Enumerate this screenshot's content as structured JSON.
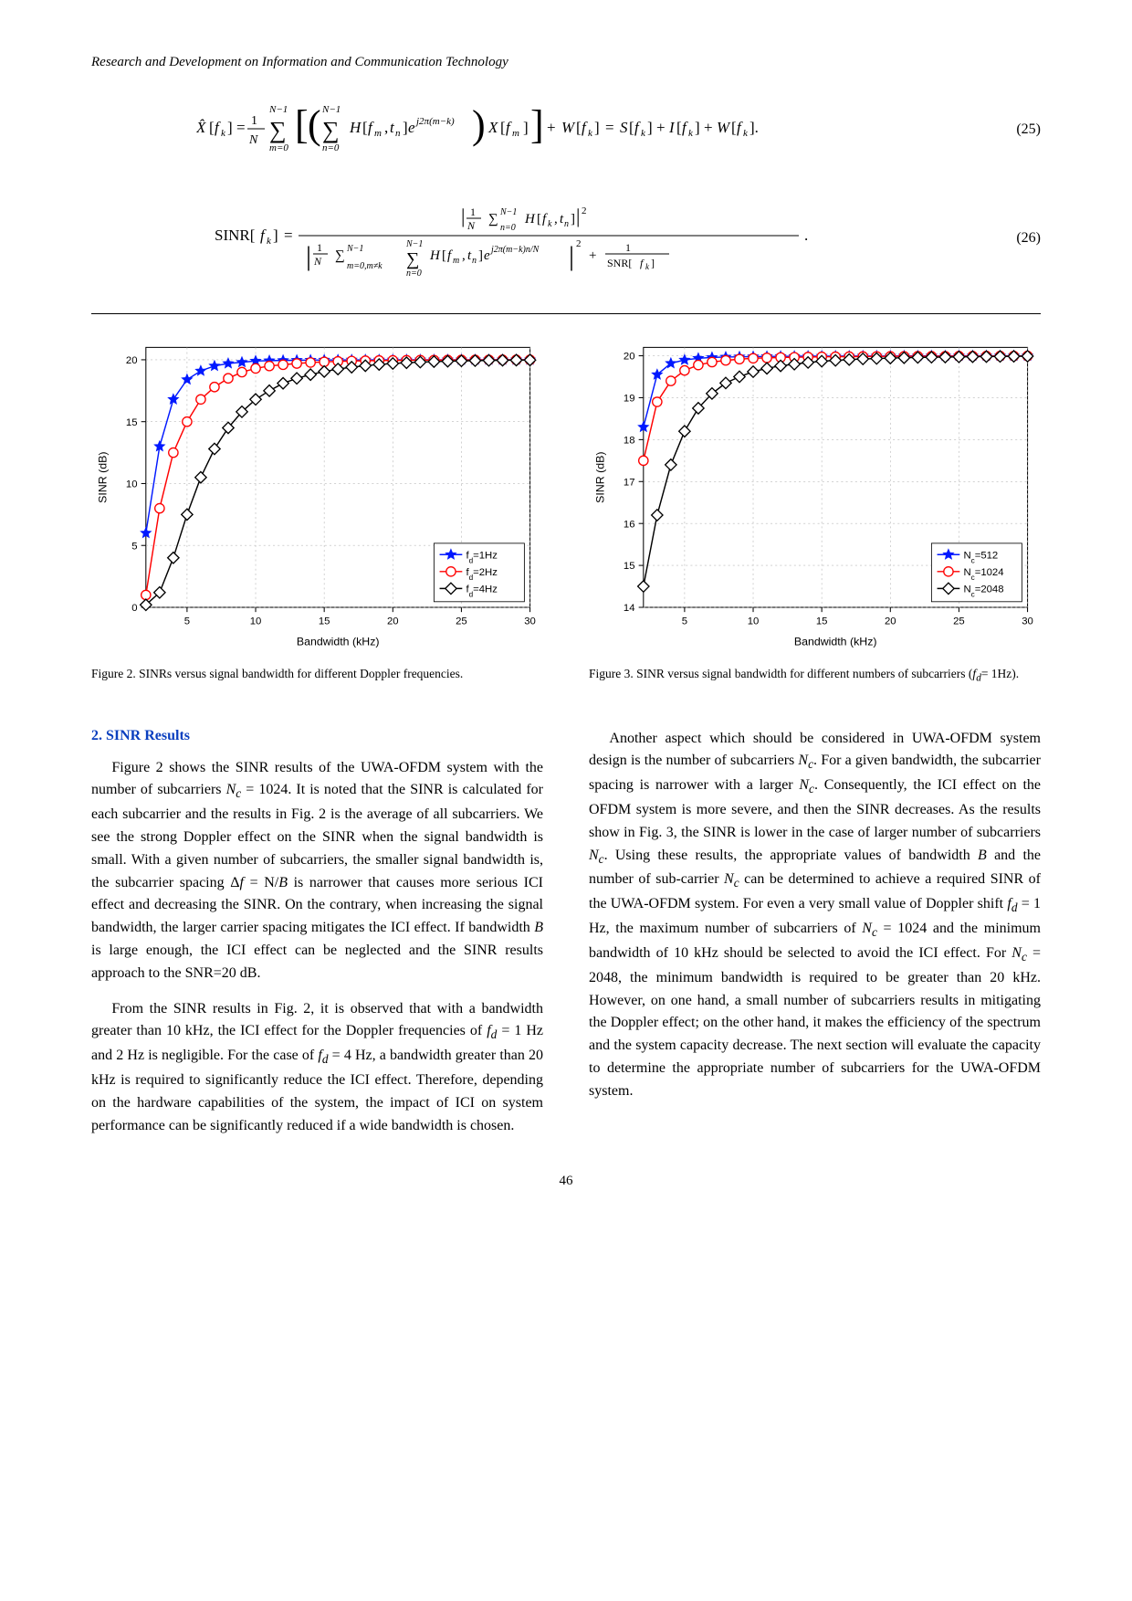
{
  "header": "Research and Development on Information and Communication Technology",
  "pageNumber": "46",
  "equations": {
    "eq25": {
      "number": "(25)",
      "latex": "X̂[fₖ] = (1/N) Σₘ₌₀^{N−1} [ ( Σₙ₌₀^{N−1} H[fₘ,tₙ] e^{j2π(m−k)} ) X[fₘ] ] + W[fₖ] = S[fₖ] + I[fₖ] + W[fₖ]."
    },
    "eq26": {
      "number": "(26)",
      "latex": "SINR[fₖ] = | (1/N) Σₙ₌₀^{N−1} H[fₖ,tₙ] |² / ( | (1/N) Σ_{m=0,m≠k}^{N−1} Σₙ₌₀^{N−1} H[fₘ,tₙ] e^{j2π(m−k)n/N} |² + 1/SNR[fₖ] )."
    }
  },
  "figure2": {
    "captionPrefix": "Figure 2.",
    "caption": "SINRs versus signal bandwidth for different Doppler frequencies.",
    "type": "line-marker",
    "xlabel": "Bandwidth (kHz)",
    "ylabel": "SINR (dB)",
    "xlim": [
      2,
      30
    ],
    "ylim": [
      0,
      21
    ],
    "xticks": [
      5,
      10,
      15,
      20,
      25,
      30
    ],
    "yticks": [
      0,
      5,
      10,
      15,
      20
    ],
    "label_fontsize": 12,
    "tick_fontsize": 11,
    "background_color": "#ffffff",
    "grid_color": "#b8b8b8",
    "axis_color": "#000000",
    "legend": {
      "position": "lower-right",
      "border_color": "#000000",
      "bg": "#ffffff",
      "fontsize": 11
    },
    "series": [
      {
        "name": "f_d=1Hz",
        "legend_label": "f_d=1Hz",
        "color": "#0018ff",
        "marker": "star",
        "marker_size": 6,
        "line_width": 1.4,
        "x": [
          2,
          3,
          4,
          5,
          6,
          7,
          8,
          9,
          10,
          11,
          12,
          13,
          14,
          15,
          16,
          17,
          18,
          19,
          20,
          21,
          22,
          23,
          24,
          25,
          26,
          27,
          28,
          29,
          30
        ],
        "y": [
          6.0,
          13.0,
          16.8,
          18.4,
          19.1,
          19.5,
          19.7,
          19.8,
          19.9,
          19.93,
          19.95,
          19.96,
          19.97,
          19.98,
          19.985,
          19.99,
          19.992,
          19.994,
          19.995,
          19.996,
          19.997,
          19.997,
          19.998,
          19.998,
          19.999,
          19.999,
          19.999,
          20.0,
          20.0
        ]
      },
      {
        "name": "f_d=2Hz",
        "legend_label": "f_d=2Hz",
        "color": "#ff0000",
        "marker": "circle",
        "marker_size": 5,
        "line_width": 1.4,
        "x": [
          2,
          3,
          4,
          5,
          6,
          7,
          8,
          9,
          10,
          11,
          12,
          13,
          14,
          15,
          16,
          17,
          18,
          19,
          20,
          21,
          22,
          23,
          24,
          25,
          26,
          27,
          28,
          29,
          30
        ],
        "y": [
          1.0,
          8.0,
          12.5,
          15.0,
          16.8,
          17.8,
          18.5,
          19.0,
          19.3,
          19.5,
          19.6,
          19.7,
          19.78,
          19.83,
          19.87,
          19.9,
          19.92,
          19.94,
          19.95,
          19.96,
          19.97,
          19.975,
          19.98,
          19.985,
          19.99,
          19.992,
          19.994,
          19.996,
          19.998
        ]
      },
      {
        "name": "f_d=4Hz",
        "legend_label": "f_d=4Hz",
        "color": "#000000",
        "marker": "diamond",
        "marker_size": 6,
        "line_width": 1.4,
        "x": [
          2,
          3,
          4,
          5,
          6,
          7,
          8,
          9,
          10,
          11,
          12,
          13,
          14,
          15,
          16,
          17,
          18,
          19,
          20,
          21,
          22,
          23,
          24,
          25,
          26,
          27,
          28,
          29,
          30
        ],
        "y": [
          0.2,
          1.2,
          4.0,
          7.5,
          10.5,
          12.8,
          14.5,
          15.8,
          16.8,
          17.5,
          18.1,
          18.5,
          18.8,
          19.05,
          19.25,
          19.4,
          19.52,
          19.62,
          19.7,
          19.76,
          19.81,
          19.85,
          19.88,
          19.91,
          19.93,
          19.95,
          19.96,
          19.97,
          19.98
        ]
      }
    ]
  },
  "figure3": {
    "captionPrefix": "Figure 3.",
    "caption": "SINR versus signal bandwidth for different numbers of subcarriers (f_d= 1Hz).",
    "type": "line-marker",
    "xlabel": "Bandwidth (kHz)",
    "ylabel": "SINR (dB)",
    "xlim": [
      2,
      30
    ],
    "ylim": [
      14,
      20.2
    ],
    "xticks": [
      5,
      10,
      15,
      20,
      25,
      30
    ],
    "yticks": [
      14,
      15,
      16,
      17,
      18,
      19,
      20
    ],
    "label_fontsize": 12,
    "tick_fontsize": 11,
    "background_color": "#ffffff",
    "grid_color": "#b8b8b8",
    "axis_color": "#000000",
    "legend": {
      "position": "lower-right",
      "border_color": "#000000",
      "bg": "#ffffff",
      "fontsize": 11
    },
    "series": [
      {
        "name": "N_c=512",
        "legend_label": "N_c=512",
        "color": "#0018ff",
        "marker": "star",
        "marker_size": 6,
        "line_width": 1.4,
        "x": [
          2,
          3,
          4,
          5,
          6,
          7,
          8,
          9,
          10,
          11,
          12,
          13,
          14,
          15,
          16,
          17,
          18,
          19,
          20,
          21,
          22,
          23,
          24,
          25,
          26,
          27,
          28,
          29,
          30
        ],
        "y": [
          18.3,
          19.55,
          19.82,
          19.9,
          19.94,
          19.96,
          19.97,
          19.975,
          19.98,
          19.983,
          19.986,
          19.988,
          19.99,
          19.991,
          19.992,
          19.993,
          19.994,
          19.995,
          19.995,
          19.996,
          19.996,
          19.997,
          19.997,
          19.998,
          19.998,
          19.998,
          19.999,
          19.999,
          19.999
        ]
      },
      {
        "name": "N_c=1024",
        "legend_label": "N_c=1024",
        "color": "#ff0000",
        "marker": "circle",
        "marker_size": 5,
        "line_width": 1.4,
        "x": [
          2,
          3,
          4,
          5,
          6,
          7,
          8,
          9,
          10,
          11,
          12,
          13,
          14,
          15,
          16,
          17,
          18,
          19,
          20,
          21,
          22,
          23,
          24,
          25,
          26,
          27,
          28,
          29,
          30
        ],
        "y": [
          17.5,
          18.9,
          19.4,
          19.65,
          19.78,
          19.85,
          19.89,
          19.92,
          19.94,
          19.95,
          19.96,
          19.965,
          19.97,
          19.975,
          19.978,
          19.98,
          19.982,
          19.984,
          19.986,
          19.987,
          19.988,
          19.989,
          19.99,
          19.991,
          19.992,
          19.993,
          19.994,
          19.995,
          19.996
        ]
      },
      {
        "name": "N_c=2048",
        "legend_label": "N_c=2048",
        "color": "#000000",
        "marker": "diamond",
        "marker_size": 6,
        "line_width": 1.4,
        "x": [
          2,
          3,
          4,
          5,
          6,
          7,
          8,
          9,
          10,
          11,
          12,
          13,
          14,
          15,
          16,
          17,
          18,
          19,
          20,
          21,
          22,
          23,
          24,
          25,
          26,
          27,
          28,
          29,
          30
        ],
        "y": [
          14.5,
          16.2,
          17.4,
          18.2,
          18.75,
          19.1,
          19.35,
          19.5,
          19.62,
          19.7,
          19.76,
          19.8,
          19.84,
          19.87,
          19.89,
          19.91,
          19.925,
          19.935,
          19.945,
          19.953,
          19.96,
          19.965,
          19.97,
          19.974,
          19.978,
          19.981,
          19.984,
          19.987,
          19.99
        ]
      }
    ]
  },
  "section": {
    "title": "2. SINR Results"
  },
  "body": {
    "leftParas": [
      "Figure 2 shows the SINR results of the UWA-OFDM system with the number of subcarriers N_c = 1024. It is noted that the SINR is calculated for each subcarrier and the results in Fig. 2 is the average of all subcarriers. We see the strong Doppler effect on the SINR when the signal bandwidth is small. With a given number of subcarriers, the smaller signal bandwidth is, the subcarrier spacing Δf = N/B is narrower that causes more serious ICI effect and decreasing the SINR. On the contrary, when increasing the signal bandwidth, the larger carrier spacing mitigates the ICI effect. If bandwidth B is large enough, the ICI effect can be neglected and the SINR results approach to the SNR=20 dB.",
      "From the SINR results in Fig. 2, it is observed that with a bandwidth greater than 10 kHz, the ICI effect for the Doppler frequencies of f_d = 1 Hz and 2 Hz is negligible. For the case of f_d = 4 Hz, a bandwidth greater than 20 kHz is required to significantly reduce the ICI effect. Therefore, depending on the hardware capabilities of the system, the impact of ICI on system performance can be significantly reduced if a wide bandwidth is chosen."
    ],
    "rightParas": [
      "Another aspect which should be considered in UWA-OFDM system design is the number of subcarriers N_c. For a given bandwidth, the subcarrier spacing is narrower with a larger N_c. Consequently, the ICI effect on the OFDM system is more severe, and then the SINR decreases. As the results show in Fig. 3, the SINR is lower in the case of larger number of subcarriers N_c. Using these results, the appropriate values of bandwidth B and the number of sub-carrier N_c can be determined to achieve a required SINR of the UWA-OFDM system. For even a very small value of Doppler shift f_d = 1 Hz, the maximum number of subcarriers of N_c = 1024 and the minimum bandwidth of 10 kHz should be selected to avoid the ICI effect. For N_c = 2048, the minimum bandwidth is required to be greater than 20 kHz. However, on one hand, a small number of subcarriers results in mitigating the Doppler effect; on the other hand, it makes the efficiency of the spectrum and the system capacity decrease. The next section will evaluate the capacity to determine the appropriate number of subcarriers for the UWA-OFDM system."
    ]
  }
}
